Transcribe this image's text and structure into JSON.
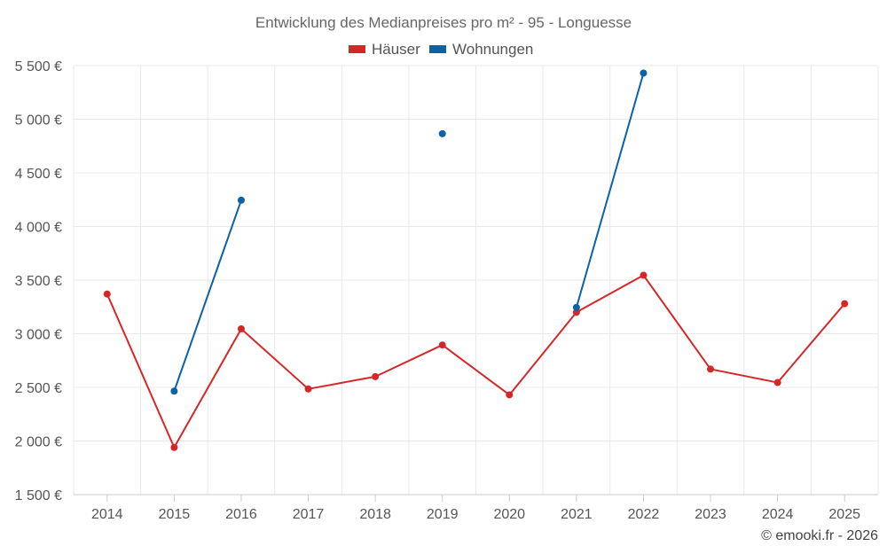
{
  "chart_data": {
    "type": "line",
    "title": "Entwicklung des Medianpreises pro m² - 95 - Longuesse",
    "categories": [
      "2014",
      "2015",
      "2016",
      "2017",
      "2018",
      "2019",
      "2020",
      "2021",
      "2022",
      "2023",
      "2024",
      "2025"
    ],
    "series": [
      {
        "name": "Häuser",
        "color": "#d62728",
        "values": [
          3370,
          1940,
          3045,
          2485,
          2600,
          2895,
          2430,
          3200,
          3545,
          2670,
          2545,
          3280
        ]
      },
      {
        "name": "Wohnungen",
        "color": "#0b62a4",
        "values": [
          null,
          2465,
          4245,
          null,
          null,
          4865,
          null,
          3245,
          5430,
          null,
          null,
          null
        ]
      }
    ],
    "ylim": [
      1500,
      5500
    ],
    "yticks": [
      1500,
      2000,
      2500,
      3000,
      3500,
      4000,
      4500,
      5000,
      5500
    ],
    "ytick_labels": [
      "1 500 €",
      "2 000 €",
      "2 500 €",
      "3 000 €",
      "3 500 €",
      "4 000 €",
      "4 500 €",
      "5 000 €",
      "5 500 €"
    ],
    "xlabel": "",
    "ylabel": "",
    "legend": "top-center",
    "grid": true
  },
  "credit": "© emooki.fr - 2026"
}
